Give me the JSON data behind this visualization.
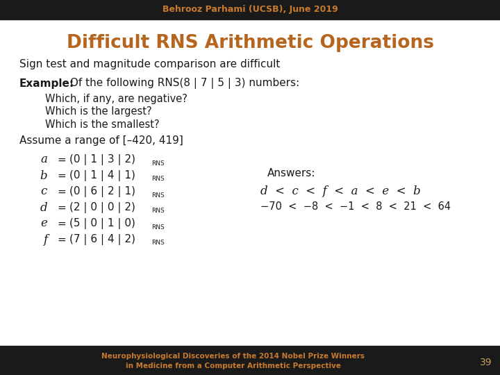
{
  "bg_color": "#ffffff",
  "header_bg": "#1a1a1a",
  "footer_bg": "#1a1a1a",
  "header_text": "Behrooz Parhami (UCSB), June 2019",
  "header_color": "#c87a2e",
  "title": "Difficult RNS Arithmetic Operations",
  "title_color": "#b5651d",
  "subtitle": "Sign test and magnitude comparison are difficult",
  "example_bold": "Example:",
  "example_rest": " Of the following RNS(8 | 7 | 5 | 3) numbers:",
  "bullets": [
    "Which, if any, are negative?",
    "Which is the largest?",
    "Which is the smallest?"
  ],
  "assume_text": "Assume a range of [–420, 419]",
  "equations": [
    [
      "a",
      "=",
      "(0 | 1 | 3 | 2)",
      "RNS"
    ],
    [
      "b",
      "=",
      "(0 | 1 | 4 | 1)",
      "RNS"
    ],
    [
      "c",
      "=",
      "(0 | 6 | 2 | 1)",
      "RNS"
    ],
    [
      "d",
      "=",
      "(2 | 0 | 0 | 2)",
      "RNS"
    ],
    [
      "e",
      "=",
      "(5 | 0 | 1 | 0)",
      "RNS"
    ],
    [
      "f",
      "=",
      "(7 | 6 | 4 | 2)",
      "RNS"
    ]
  ],
  "answers_label": "Answers:",
  "answers_line1": "d  <  c  <  f  <  a  <  e  <  b",
  "answers_line2": "−70  <  −8  <  −1  <  8  <  21  <  64",
  "footer_line1": "Neurophysiological Discoveries of the 2014 Nobel Prize Winners",
  "footer_line2": "in Medicine from a Computer Arithmetic Perspective",
  "footer_color": "#c87a2e",
  "page_num": "39",
  "page_num_color": "#c8a060"
}
